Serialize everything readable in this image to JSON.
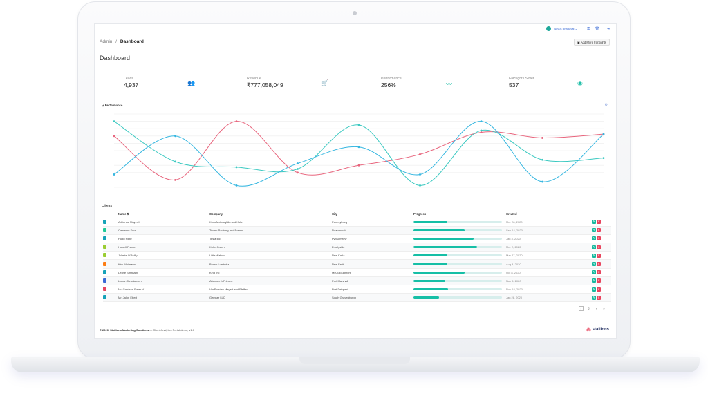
{
  "topbar": {
    "user_name": "Novus Bhagavat ⌄"
  },
  "breadcrumb": {
    "root": "Admin",
    "sep": "/",
    "current": "Dashboard"
  },
  "header": {
    "add_button": "Add More FarSights",
    "page_title": "Dashboard"
  },
  "kpis": [
    {
      "label": "Leads",
      "value": "4,937",
      "icon": "users-icon",
      "glyph": "👥"
    },
    {
      "label": "Revenue",
      "value": "₹777,058,049",
      "icon": "cart-icon",
      "glyph": "🛒"
    },
    {
      "label": "Performance",
      "value": "256%",
      "icon": "trend-icon",
      "glyph": "〰"
    },
    {
      "label": "FarSights Silver",
      "value": "537",
      "icon": "eye-icon",
      "glyph": "◉"
    }
  ],
  "chart_data": {
    "type": "line",
    "title": "Performance",
    "x": [
      0,
      1,
      2,
      3,
      4,
      5,
      6,
      7,
      8
    ],
    "ylim": [
      0,
      200
    ],
    "grid": true,
    "colors": [
      "#e8657d",
      "#3bc9c1",
      "#34b6e0"
    ],
    "series": [
      {
        "values": [
          140,
          20,
          180,
          40,
          60,
          90,
          150,
          135,
          145
        ]
      },
      {
        "values": [
          180,
          70,
          55,
          50,
          170,
          5,
          155,
          75,
          80
        ]
      },
      {
        "values": [
          35,
          140,
          5,
          65,
          110,
          35,
          180,
          15,
          145
        ]
      }
    ]
  },
  "clients": {
    "title": "Clients",
    "columns": [
      "Name ⇅",
      "Company",
      "City",
      "Progress",
      "Created"
    ],
    "rows": [
      {
        "name": "Adrienne Mayer II",
        "company": "Koss McLaughlin and Kuhn",
        "city": "Pennsylburg",
        "progress": 0.38,
        "created": "Mar 28, 2020",
        "color": "#17a2b8"
      },
      {
        "name": "Cameron Ema",
        "company": "Tromp Padberg and Pouros",
        "city": "Noahmouth",
        "progress": 0.58,
        "created": "Sep 14, 2020",
        "color": "#20c997"
      },
      {
        "name": "Hugo Hintz",
        "company": "Tesla Inc",
        "city": "Pynsonview",
        "progress": 0.68,
        "created": "Jan 3, 2020",
        "color": "#17a2b8"
      },
      {
        "name": "Howell Frame",
        "company": "Kohn Green",
        "city": "Emelyside",
        "progress": 0.72,
        "created": "Mar 2, 2020",
        "color": "#9acd32"
      },
      {
        "name": "Juliette O'Reilly",
        "company": "Little Walker",
        "city": "New Karla",
        "progress": 0.38,
        "created": "Mar 27, 2020",
        "color": "#9acd32"
      },
      {
        "name": "Kim Weimann",
        "company": "Brown Luettwitz",
        "city": "New Ernit",
        "progress": 0.38,
        "created": "Aug 4, 2020",
        "color": "#fd7e14"
      },
      {
        "name": "Leone Smitham",
        "company": "King Inc",
        "city": "McCulloughfort",
        "progress": 0.58,
        "created": "Oct 8, 2020",
        "color": "#17a2b8"
      },
      {
        "name": "Lorna Christiansen",
        "company": "Altenwerth Friesen",
        "city": "Port Marshall",
        "progress": 0.36,
        "created": "Nov 6, 2020",
        "color": "#3b6bd6"
      },
      {
        "name": "Mr. Garrison Frees V",
        "company": "VonRueden Mayert and Pfeffer",
        "city": "Port Delqueri",
        "progress": 0.39,
        "created": "Nov 18, 2020",
        "color": "#e8455e"
      },
      {
        "name": "Mr. Jalon Ebert",
        "company": "Gemser LLC",
        "city": "South Gravenburgh",
        "progress": 0.29,
        "created": "Jan 28, 2020",
        "color": "#17a2b8"
      }
    ]
  },
  "pager": {
    "current": "1",
    "next": "2",
    "next_arrow": "›",
    "last": "»"
  },
  "footer": {
    "copyright": "© 2020, Stallions Marketing Solutions",
    "tagline": " — Client Analytics Portal demo, v1.0"
  },
  "brand": {
    "name": "stallions",
    "glyph": "⁂"
  }
}
